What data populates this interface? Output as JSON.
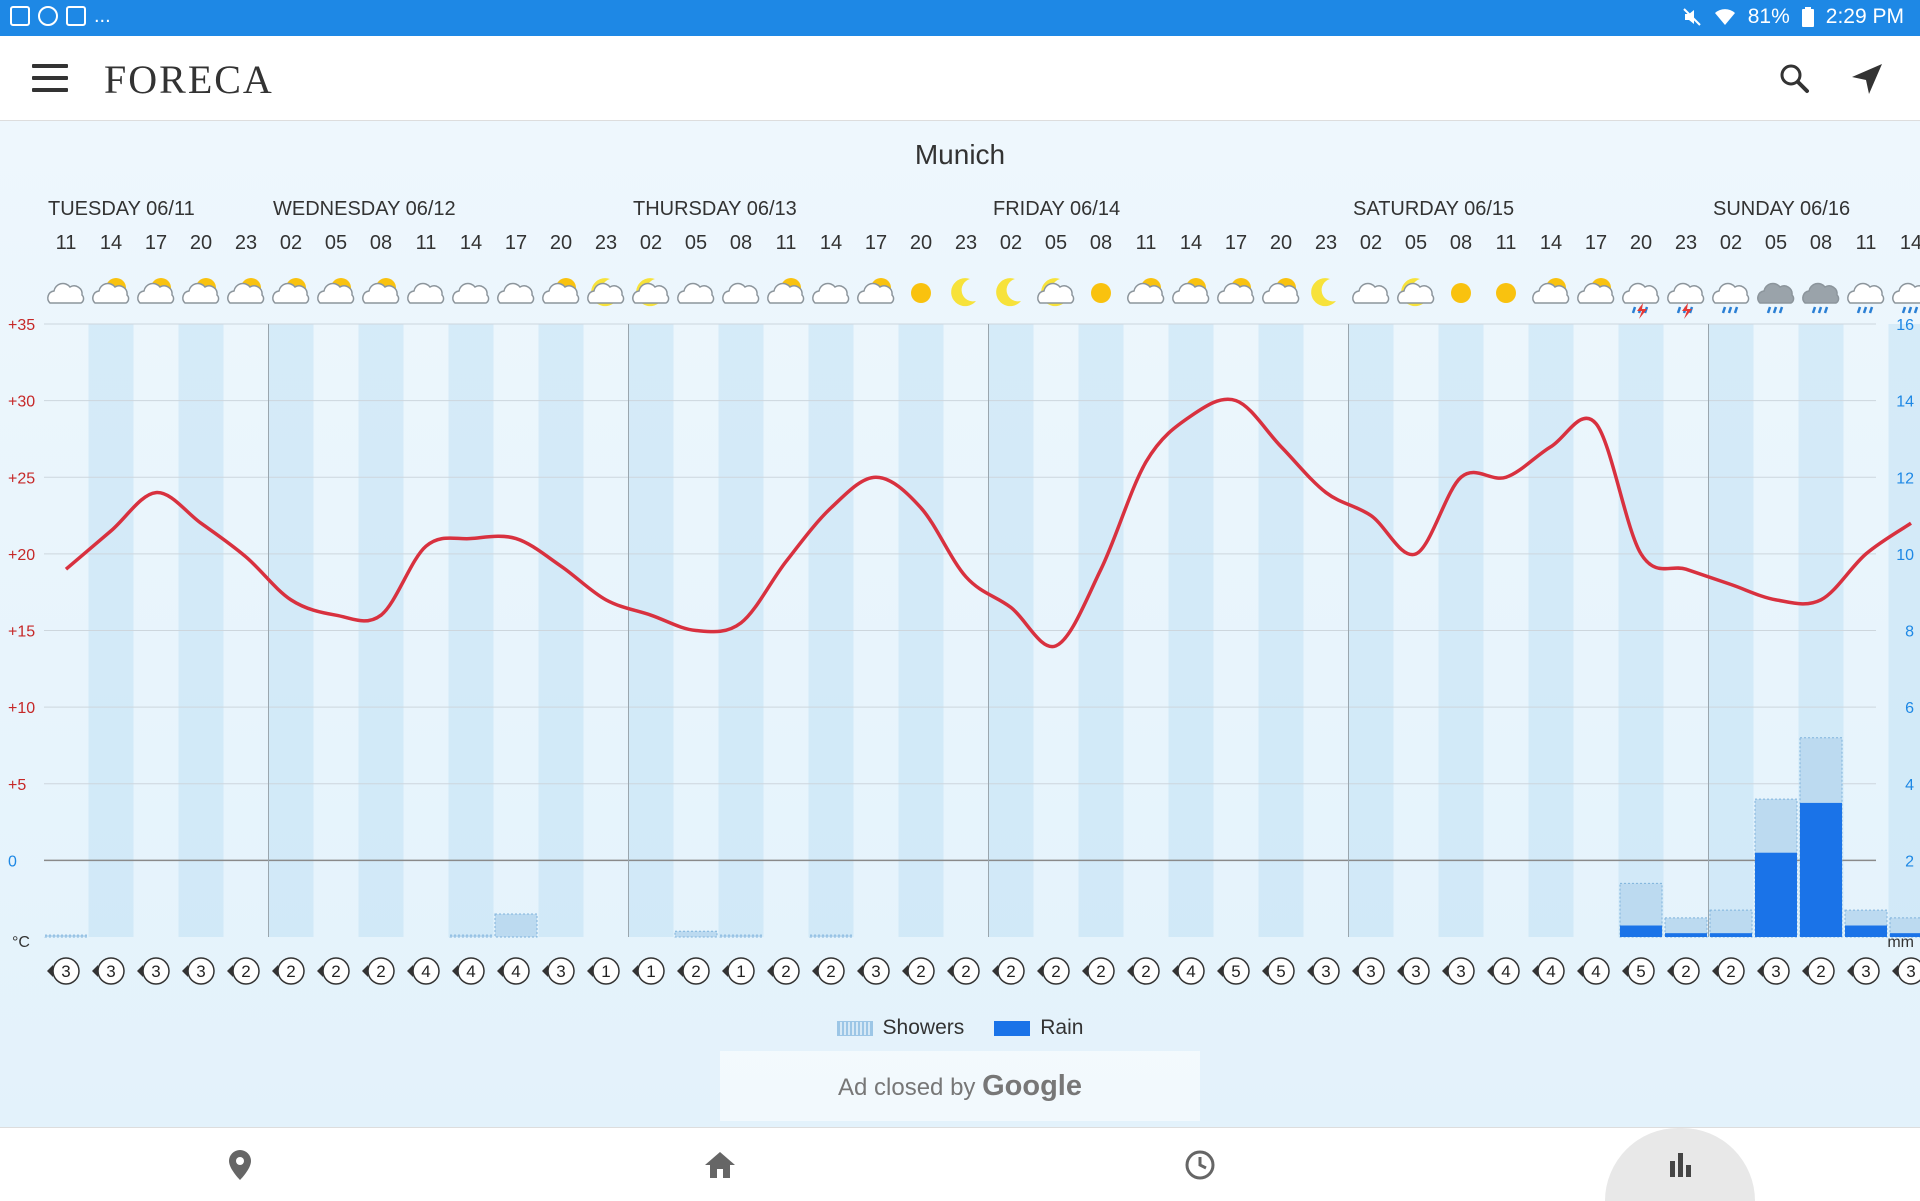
{
  "status_bar": {
    "left_more": "...",
    "battery": "81%",
    "time": "2:29 PM"
  },
  "app": {
    "logo": "FORECA"
  },
  "city": "Munich",
  "colors": {
    "accent": "#1e88e5",
    "temperature_line": "#d8313f",
    "rain": "#1a73e8",
    "showers": "#9cc6e6"
  },
  "icons": {
    "menu": "hamburger-icon",
    "search": "search-icon",
    "locate": "navigation-arrow-icon",
    "nav": [
      "location-pin-icon",
      "home-icon",
      "clock-icon",
      "bar-chart-icon"
    ]
  },
  "chart_data": {
    "type": "line",
    "days": [
      {
        "label": "TUESDAY 06/11",
        "start_index": 0
      },
      {
        "label": "WEDNESDAY 06/12",
        "start_index": 5
      },
      {
        "label": "THURSDAY 06/13",
        "start_index": 13
      },
      {
        "label": "FRIDAY 06/14",
        "start_index": 21
      },
      {
        "label": "SATURDAY 06/15",
        "start_index": 29
      },
      {
        "label": "SUNDAY 06/16",
        "start_index": 37
      }
    ],
    "hours": [
      "11",
      "14",
      "17",
      "20",
      "23",
      "02",
      "05",
      "08",
      "11",
      "14",
      "17",
      "20",
      "23",
      "02",
      "05",
      "08",
      "11",
      "14",
      "17",
      "20",
      "23",
      "02",
      "05",
      "08",
      "11",
      "14",
      "17",
      "20",
      "23",
      "02",
      "05",
      "08",
      "11",
      "14",
      "17",
      "20",
      "23",
      "02",
      "05",
      "08",
      "11",
      "14"
    ],
    "weather_icons": [
      "cloudy",
      "partly-sunny",
      "partly-cloudy",
      "partly-cloudy",
      "partly-cloudy",
      "partly-cloudy",
      "partly-cloudy",
      "partly-cloudy",
      "cloudy",
      "cloudy",
      "cloudy",
      "partly-cloudy",
      "moon-cloud",
      "moon-cloud",
      "cloudy",
      "cloudy",
      "partly-cloudy",
      "cloudy",
      "partly-sunny",
      "sunny",
      "moon",
      "moon",
      "moon-cloud",
      "sunny",
      "partly-cloudy",
      "partly-cloudy",
      "partly-cloudy",
      "partly-cloudy",
      "moon",
      "cloudy",
      "moon-cloud",
      "sunny",
      "sunny",
      "partly-cloudy",
      "partly-cloudy",
      "thunder-rain",
      "thunder-rain",
      "rain",
      "heavy-rain",
      "heavy-rain",
      "rain",
      "rain"
    ],
    "temperature": {
      "name": "",
      "unit": "°C",
      "values": [
        19,
        21.5,
        24,
        22,
        19.8,
        17,
        16,
        16,
        20.5,
        21,
        21,
        19.2,
        17,
        16,
        15,
        15.5,
        19.5,
        23,
        25,
        23,
        18.5,
        16.5,
        14,
        19,
        26,
        29,
        30,
        27,
        24,
        22.5,
        20,
        25,
        25,
        27,
        28.5,
        20,
        19,
        18,
        17,
        17,
        20,
        22
      ]
    },
    "wind": {
      "values": [
        3,
        3,
        3,
        3,
        2,
        2,
        2,
        2,
        4,
        4,
        4,
        3,
        1,
        1,
        2,
        1,
        2,
        2,
        3,
        2,
        2,
        2,
        2,
        2,
        2,
        4,
        5,
        5,
        3,
        3,
        3,
        3,
        4,
        4,
        4,
        5,
        2,
        2,
        3,
        2,
        3,
        3
      ]
    },
    "precipitation": {
      "unit": "mm",
      "series": [
        {
          "name": "Showers",
          "values": [
            0.05,
            0,
            0,
            0,
            0,
            0,
            0,
            0,
            0,
            0.05,
            0.6,
            0,
            0,
            0,
            0.15,
            0.05,
            0,
            0.05,
            0,
            0,
            0,
            0,
            0,
            0,
            0,
            0,
            0,
            0,
            0,
            0,
            0,
            0,
            0,
            0,
            0,
            1.1,
            0.4,
            0.6,
            1.4,
            1.7,
            0.4,
            0.4
          ]
        },
        {
          "name": "Rain",
          "values": [
            0,
            0,
            0,
            0,
            0,
            0,
            0,
            0,
            0,
            0,
            0,
            0,
            0,
            0,
            0,
            0,
            0,
            0,
            0,
            0,
            0,
            0,
            0,
            0,
            0,
            0,
            0,
            0,
            0,
            0,
            0,
            0,
            0,
            0,
            0,
            0.3,
            0.1,
            0.1,
            2.2,
            3.5,
            0.3,
            0.1
          ]
        }
      ]
    },
    "left_axis": {
      "ticks": [
        "+35",
        "+30",
        "+25",
        "+20",
        "+15",
        "+10",
        "+5",
        "0"
      ],
      "unit_label": "°C",
      "ylim": [
        -5,
        35
      ]
    },
    "right_axis": {
      "ticks": [
        "16",
        "14",
        "12",
        "10",
        "8",
        "6",
        "4",
        "2"
      ],
      "unit_label": "mm",
      "ylim": [
        0,
        16
      ]
    },
    "grid": true,
    "legend": {
      "position": "bottom-center",
      "entries": [
        "Showers",
        "Rain"
      ]
    }
  },
  "ad": {
    "prefix": "Ad closed by",
    "brand": "Google"
  }
}
